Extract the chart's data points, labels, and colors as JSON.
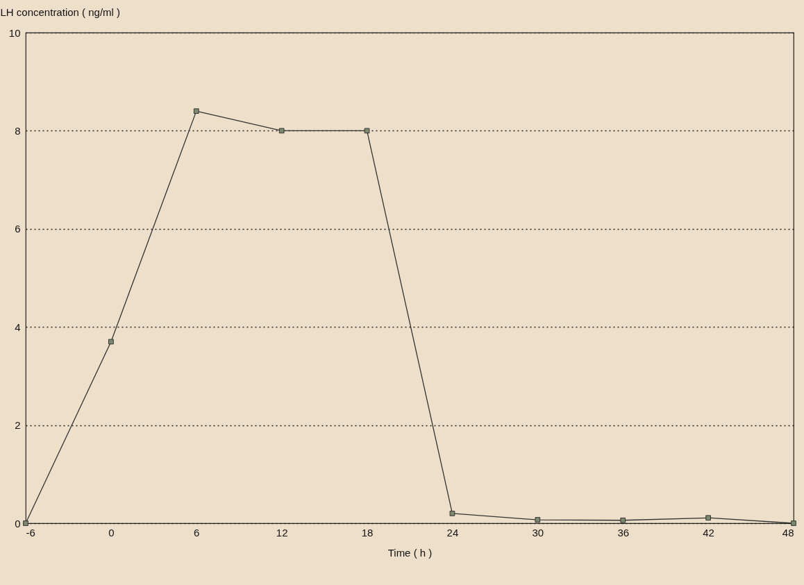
{
  "chart_data": {
    "type": "line",
    "xlabel": "Time ( h )",
    "ylabel": "LH concentration ( ng/ml )",
    "x": [
      -6,
      0,
      6,
      12,
      18,
      24,
      30,
      36,
      42,
      48
    ],
    "series": [
      {
        "color": "#333333",
        "values": [
          0,
          3.7,
          8.4,
          8.0,
          8.0,
          0.2,
          0.07,
          0.06,
          0.11,
          0
        ]
      }
    ],
    "xlim": [
      -6,
      48
    ],
    "xticks": [
      -6,
      0,
      6,
      12,
      18,
      24,
      30,
      36,
      42,
      48
    ],
    "ylim": [
      0,
      10
    ],
    "yticks": [
      0,
      2,
      4,
      6,
      8,
      10
    ],
    "grid": "y",
    "marker": "square",
    "line_style": "solid"
  }
}
